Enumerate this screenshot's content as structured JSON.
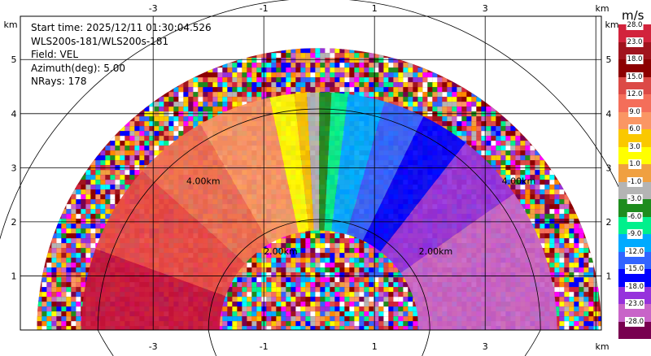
{
  "info": {
    "start_time": "Start time: 2025/12/11 01:30:04.526",
    "instrument": "WLS200s-181/WLS200s-181",
    "field": "Field: VEL",
    "azimuth": "Azimuth(deg): 5.00",
    "nrays": "NRays: 178"
  },
  "colorbar": {
    "unit": "m/s",
    "labels": [
      "28.0",
      "23.0",
      "18.0",
      "15.0",
      "12.0",
      "9.0",
      "6.0",
      "3.0",
      "1.0",
      "-1.0",
      "-3.0",
      "-6.0",
      "-9.0",
      "-12.0",
      "-15.0",
      "-18.0",
      "-23.0",
      "-28.0"
    ],
    "colors": [
      "#d2233c",
      "#a0141e",
      "#8c0000",
      "#dc4a46",
      "#f46e5a",
      "#fa9664",
      "#fac800",
      "#ffff00",
      "#f0a040",
      "#b4b4b4",
      "#1e8c1e",
      "#00f08c",
      "#00aaff",
      "#3264ff",
      "#0000ff",
      "#9632dc",
      "#c864c8",
      "#780050"
    ]
  },
  "chart_data": {
    "type": "ppi",
    "field": "VEL",
    "units": "km",
    "x_ticks": [
      -3,
      -1,
      1,
      3
    ],
    "y_ticks": [
      1,
      2,
      3,
      4,
      5
    ],
    "x_unit_label": "km",
    "y_unit_label": "km",
    "xlim": [
      -5.4,
      5.1
    ],
    "ylim": [
      0,
      5.8
    ],
    "max_range_km": 5.1,
    "ring_labels": [
      {
        "text": "2.00km",
        "x": -1.0,
        "y": 1.4
      },
      {
        "text": "2.00km",
        "x": 1.8,
        "y": 1.4
      },
      {
        "text": "4.00km",
        "x": -2.4,
        "y": 2.7
      },
      {
        "text": "4.00km",
        "x": 3.3,
        "y": 2.7
      }
    ],
    "ring_radii_km": [
      2,
      4,
      6
    ],
    "sector_az_deg": [
      [
        -90,
        -70,
        "#c8143c"
      ],
      [
        -70,
        -48,
        "#e84a44"
      ],
      [
        -48,
        -30,
        "#f07050"
      ],
      [
        -30,
        -12,
        "#fa9664"
      ],
      [
        -12,
        -6,
        "#ffff00"
      ],
      [
        -6,
        -3,
        "#fac800"
      ],
      [
        -3,
        0,
        "#b4b4b4"
      ],
      [
        0,
        3,
        "#1e8c1e"
      ],
      [
        3,
        7,
        "#00f08c"
      ],
      [
        7,
        16,
        "#00aaff"
      ],
      [
        16,
        26,
        "#3264ff"
      ],
      [
        26,
        38,
        "#0000ff"
      ],
      [
        38,
        55,
        "#9632dc"
      ],
      [
        55,
        90,
        "#c864c8"
      ]
    ]
  }
}
